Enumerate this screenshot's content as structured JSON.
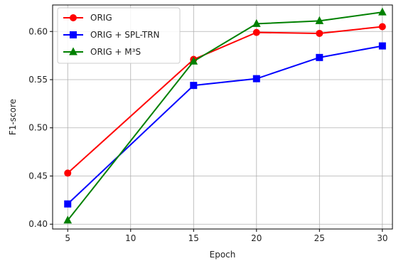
{
  "chart_data": {
    "type": "line",
    "xlabel": "Epoch",
    "ylabel": "F1-score",
    "x": [
      5,
      15,
      20,
      25,
      30
    ],
    "xticks": [
      5,
      10,
      15,
      20,
      25,
      30
    ],
    "xtick_labels": [
      "5",
      "10",
      "15",
      "20",
      "25",
      "30"
    ],
    "yticks": [
      0.4,
      0.45,
      0.5,
      0.55,
      0.6
    ],
    "ytick_labels": [
      "0.40",
      "0.45",
      "0.50",
      "0.55",
      "0.60"
    ],
    "xlim": [
      3.8,
      30.8
    ],
    "ylim": [
      0.395,
      0.6275
    ],
    "grid": true,
    "legend_position": "top-left",
    "series": [
      {
        "name": "ORIG",
        "color": "#ff0000",
        "marker": "circle",
        "values": [
          0.453,
          0.571,
          0.599,
          0.598,
          0.605
        ]
      },
      {
        "name": "ORIG + SPL-TRN",
        "color": "#0000ff",
        "marker": "square",
        "values": [
          0.421,
          0.544,
          0.551,
          0.573,
          0.585
        ]
      },
      {
        "name": "ORIG + M³S",
        "color": "#008000",
        "marker": "triangle",
        "values": [
          0.404,
          0.569,
          0.608,
          0.611,
          0.62
        ]
      }
    ]
  }
}
